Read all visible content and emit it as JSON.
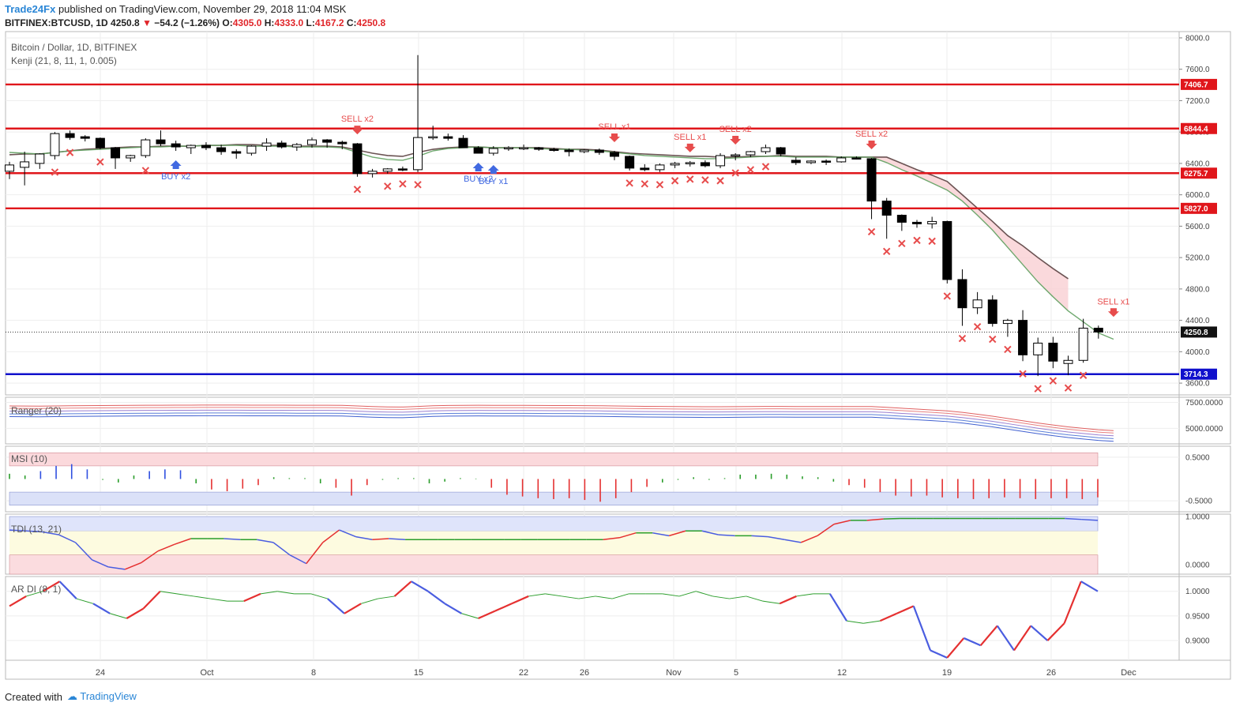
{
  "header": {
    "author": "Trade24Fx",
    "published": "published on TradingView.com, November 29, 2018 11:04 MSK",
    "symbol": "BITFINEX:BTCUSD, 1D",
    "last": "4250.8",
    "change": "−54.2 (−1.26%)",
    "o_label": "O:",
    "o": "4305.0",
    "h_label": "H:",
    "h": "4333.0",
    "l_label": "L:",
    "l": "4167.2",
    "c_label": "C:",
    "c": "4250.8"
  },
  "footer": {
    "created": "Created with",
    "brand": "TradingView"
  },
  "colors": {
    "up": "#ffffff",
    "down": "#000000",
    "resistance": "#e0161b",
    "support": "#1010cc",
    "sell": "#e74c4c",
    "buy": "#4169e1",
    "cloud": "#f9cfd3"
  },
  "chart_data": [
    {
      "type": "candlestick",
      "title": "Bitcoin / Dollar, 1D, BITFINEX",
      "indicator": "Kenji (21, 8, 11, 1, 0.005)",
      "x_ticks": [
        "24",
        "Oct",
        "8",
        "15",
        "22",
        "26",
        "Nov",
        "5",
        "12",
        "19",
        "26",
        "Dec"
      ],
      "y_ticks": [
        "8000.0",
        "7600.0",
        "7200.0",
        "6800.0",
        "6400.0",
        "6000.0",
        "5600.0",
        "5200.0",
        "4800.0",
        "4400.0",
        "4000.0",
        "3600.0"
      ],
      "ylim": [
        3450,
        8080
      ],
      "ohlc": [
        [
          6300,
          6420,
          6200,
          6380
        ],
        [
          6350,
          6550,
          6120,
          6420
        ],
        [
          6400,
          6530,
          6330,
          6520
        ],
        [
          6500,
          6800,
          6450,
          6780
        ],
        [
          6780,
          6820,
          6700,
          6730
        ],
        [
          6740,
          6760,
          6680,
          6720
        ],
        [
          6720,
          6730,
          6580,
          6600
        ],
        [
          6600,
          6610,
          6330,
          6470
        ],
        [
          6470,
          6510,
          6420,
          6500
        ],
        [
          6500,
          6720,
          6470,
          6700
        ],
        [
          6700,
          6820,
          6620,
          6650
        ],
        [
          6650,
          6690,
          6560,
          6610
        ],
        [
          6600,
          6640,
          6520,
          6630
        ],
        [
          6630,
          6670,
          6570,
          6600
        ],
        [
          6600,
          6640,
          6510,
          6550
        ],
        [
          6550,
          6580,
          6460,
          6530
        ],
        [
          6530,
          6630,
          6500,
          6620
        ],
        [
          6620,
          6720,
          6560,
          6660
        ],
        [
          6660,
          6690,
          6590,
          6610
        ],
        [
          6610,
          6660,
          6560,
          6640
        ],
        [
          6640,
          6730,
          6600,
          6700
        ],
        [
          6700,
          6710,
          6600,
          6670
        ],
        [
          6670,
          6690,
          6580,
          6650
        ],
        [
          6650,
          6660,
          6230,
          6270
        ],
        [
          6270,
          6330,
          6220,
          6300
        ],
        [
          6300,
          6340,
          6270,
          6330
        ],
        [
          6330,
          6360,
          6300,
          6320
        ],
        [
          6320,
          7780,
          6290,
          6730
        ],
        [
          6730,
          6880,
          6700,
          6740
        ],
        [
          6740,
          6780,
          6690,
          6720
        ],
        [
          6720,
          6760,
          6600,
          6600
        ],
        [
          6600,
          6620,
          6530,
          6530
        ],
        [
          6530,
          6620,
          6500,
          6590
        ],
        [
          6590,
          6620,
          6560,
          6600
        ],
        [
          6600,
          6640,
          6570,
          6600
        ],
        [
          6600,
          6610,
          6560,
          6580
        ],
        [
          6580,
          6600,
          6550,
          6570
        ],
        [
          6570,
          6590,
          6490,
          6550
        ],
        [
          6550,
          6580,
          6530,
          6570
        ],
        [
          6570,
          6590,
          6510,
          6540
        ],
        [
          6540,
          6560,
          6440,
          6490
        ],
        [
          6490,
          6500,
          6310,
          6340
        ],
        [
          6340,
          6390,
          6300,
          6320
        ],
        [
          6320,
          6400,
          6290,
          6380
        ],
        [
          6380,
          6420,
          6340,
          6400
        ],
        [
          6400,
          6430,
          6360,
          6410
        ],
        [
          6410,
          6440,
          6350,
          6370
        ],
        [
          6370,
          6530,
          6340,
          6500
        ],
        [
          6500,
          6530,
          6440,
          6510
        ],
        [
          6510,
          6560,
          6480,
          6550
        ],
        [
          6550,
          6640,
          6520,
          6600
        ],
        [
          6600,
          6610,
          6490,
          6520
        ],
        [
          6440,
          6480,
          6380,
          6410
        ],
        [
          6410,
          6440,
          6390,
          6430
        ],
        [
          6430,
          6450,
          6380,
          6420
        ],
        [
          6420,
          6490,
          6410,
          6470
        ],
        [
          6470,
          6490,
          6450,
          6460
        ],
        [
          6460,
          6470,
          5690,
          5920
        ],
        [
          5920,
          5960,
          5440,
          5740
        ],
        [
          5740,
          5750,
          5540,
          5650
        ],
        [
          5650,
          5680,
          5580,
          5630
        ],
        [
          5630,
          5720,
          5570,
          5660
        ],
        [
          5660,
          5670,
          4870,
          4920
        ],
        [
          4920,
          5050,
          4330,
          4560
        ],
        [
          4560,
          4760,
          4480,
          4660
        ],
        [
          4660,
          4720,
          4320,
          4360
        ],
        [
          4360,
          4420,
          4190,
          4400
        ],
        [
          4400,
          4530,
          3880,
          3960
        ],
        [
          3960,
          4180,
          3690,
          4110
        ],
        [
          4110,
          4190,
          3790,
          3880
        ],
        [
          3850,
          3950,
          3700,
          3890
        ],
        [
          3890,
          4420,
          3860,
          4300
        ],
        [
          4300,
          4333,
          4167,
          4251
        ]
      ],
      "kenji_line": [
        6540,
        6530,
        6520,
        6540,
        6560,
        6570,
        6580,
        6590,
        6600,
        6610,
        6610,
        6620,
        6620,
        6630,
        6630,
        6630,
        6620,
        6620,
        6620,
        6610,
        6610,
        6610,
        6600,
        6540,
        6480,
        6450,
        6440,
        6490,
        6560,
        6590,
        6600,
        6610,
        6600,
        6600,
        6600,
        6590,
        6580,
        6580,
        6570,
        6560,
        6540,
        6520,
        6500,
        6490,
        6480,
        6470,
        6460,
        6460,
        6470,
        6480,
        6490,
        6490,
        6480,
        6480,
        6480,
        6480,
        6480,
        6480,
        6410,
        6320,
        6240,
        6150,
        6060,
        5920,
        5740,
        5550,
        5330,
        5110,
        4890,
        4700,
        4520,
        4380,
        4240,
        4160
      ],
      "cloud_upper": [
        6510,
        6520,
        6520,
        6540,
        6560,
        6580,
        6590,
        6600,
        6610,
        6610,
        6620,
        6620,
        6620,
        6630,
        6630,
        6640,
        6640,
        6630,
        6630,
        6620,
        6620,
        6620,
        6610,
        6570,
        6530,
        6500,
        6490,
        6540,
        6580,
        6600,
        6610,
        6610,
        6600,
        6600,
        6600,
        6600,
        6590,
        6580,
        6580,
        6570,
        6550,
        6530,
        6520,
        6510,
        6500,
        6490,
        6490,
        6480,
        6480,
        6490,
        6490,
        6500,
        6490,
        6490,
        6490,
        6480,
        6480,
        6480,
        6480,
        6400,
        6320,
        6250,
        6170,
        6000,
        5830,
        5660,
        5480,
        5350,
        5200,
        5060,
        4930
      ],
      "levels": [
        {
          "value": 7406.7,
          "label": "7406.7",
          "kind": "resistance"
        },
        {
          "value": 6844.4,
          "label": "6844.4",
          "kind": "resistance"
        },
        {
          "value": 6275.7,
          "label": "6275.7",
          "kind": "resistance"
        },
        {
          "value": 5827.0,
          "label": "5827.0",
          "kind": "resistance"
        },
        {
          "value": 3714.3,
          "label": "3714.3",
          "kind": "support"
        }
      ],
      "last_price": {
        "value": 4250.8,
        "label": "4250.8"
      },
      "x_marks_below": [
        3,
        4,
        6,
        9,
        23,
        25,
        26,
        27,
        41,
        42,
        43,
        44,
        45,
        46,
        47,
        48,
        49,
        50,
        57,
        58,
        59,
        60,
        61,
        62,
        63,
        64,
        65,
        66,
        67,
        68,
        69,
        70,
        71,
        73
      ],
      "signals": [
        {
          "bar": 11,
          "label": "BUY x2",
          "kind": "buy"
        },
        {
          "bar": 23,
          "label": "SELL x2",
          "kind": "sell"
        },
        {
          "bar": 31,
          "label": "BUY x2",
          "kind": "buy"
        },
        {
          "bar": 32,
          "label": "BUY x1",
          "kind": "buy"
        },
        {
          "bar": 40,
          "label": "SELL x1",
          "kind": "sell"
        },
        {
          "bar": 45,
          "label": "SELL x1",
          "kind": "sell"
        },
        {
          "bar": 48,
          "label": "SELL x2",
          "kind": "sell"
        },
        {
          "bar": 57,
          "label": "SELL x2",
          "kind": "sell"
        },
        {
          "bar": 73,
          "label": "SELL x1",
          "kind": "sell"
        }
      ]
    },
    {
      "type": "line",
      "title": "Ranger (20)",
      "y_ticks": [
        "7500.0000",
        "5000.0000"
      ],
      "ylim": [
        3500,
        8000
      ]
    },
    {
      "type": "bar",
      "title": "MSI (10)",
      "y_ticks": [
        "0.5000",
        "-0.5000"
      ],
      "ylim": [
        -0.75,
        0.75
      ],
      "values": [
        0.12,
        0.08,
        0.18,
        0.3,
        0.34,
        0.22,
        -0.02,
        -0.08,
        0.08,
        0.18,
        0.22,
        0.2,
        -0.1,
        -0.24,
        -0.28,
        -0.22,
        -0.14,
        0.04,
        0.02,
        0.02,
        -0.1,
        -0.2,
        -0.38,
        -0.14,
        -0.02,
        0.02,
        0.02,
        -0.1,
        -0.06,
        0.02,
        0.01,
        -0.2,
        -0.36,
        -0.4,
        -0.44,
        -0.46,
        -0.44,
        -0.48,
        -0.52,
        -0.44,
        -0.3,
        -0.18,
        -0.08,
        -0.02,
        0.04,
        -0.02,
        0.02,
        0.1,
        0.1,
        0.12,
        0.1,
        0.06,
        0.04,
        -0.06,
        -0.14,
        -0.2,
        -0.3,
        -0.38,
        -0.4,
        -0.38,
        -0.42,
        -0.44,
        -0.46,
        -0.44,
        -0.42,
        -0.44,
        -0.46,
        -0.44,
        -0.44,
        -0.46,
        -0.42
      ]
    },
    {
      "type": "line",
      "title": "TDI (13, 21)",
      "y_ticks": [
        "1.0000",
        "0.0000"
      ],
      "ylim": [
        -0.2,
        1.05
      ],
      "values": [
        0.72,
        0.7,
        0.68,
        0.62,
        0.46,
        0.1,
        -0.05,
        -0.1,
        0.04,
        0.28,
        0.42,
        0.54,
        0.54,
        0.54,
        0.52,
        0.52,
        0.46,
        0.2,
        0.02,
        0.46,
        0.72,
        0.58,
        0.52,
        0.54,
        0.52,
        0.52,
        0.52,
        0.52,
        0.52,
        0.52,
        0.52,
        0.52,
        0.52,
        0.52,
        0.52,
        0.52,
        0.52,
        0.56,
        0.66,
        0.66,
        0.6,
        0.7,
        0.7,
        0.62,
        0.6,
        0.6,
        0.58,
        0.52,
        0.46,
        0.6,
        0.84,
        0.92,
        0.92,
        0.95,
        0.96,
        0.96,
        0.96,
        0.96,
        0.96,
        0.96,
        0.96,
        0.96,
        0.96,
        0.96,
        0.96,
        0.94,
        0.92
      ]
    },
    {
      "type": "line",
      "title": "AR DI (8, 1)",
      "y_ticks": [
        "1.0000",
        "0.9500",
        "0.9000"
      ],
      "ylim": [
        0.86,
        1.03
      ],
      "values": [
        0.97,
        0.99,
        1.0,
        1.02,
        0.985,
        0.975,
        0.955,
        0.945,
        0.965,
        1.0,
        0.995,
        0.99,
        0.985,
        0.98,
        0.98,
        0.995,
        1.0,
        0.995,
        0.995,
        0.985,
        0.955,
        0.975,
        0.985,
        0.99,
        1.02,
        1.0,
        0.975,
        0.955,
        0.945,
        0.96,
        0.975,
        0.99,
        0.995,
        0.99,
        0.985,
        0.99,
        0.985,
        0.995,
        0.995,
        0.995,
        0.99,
        1.0,
        0.99,
        0.985,
        0.99,
        0.98,
        0.975,
        0.99,
        0.995,
        0.995,
        0.94,
        0.935,
        0.94,
        0.955,
        0.97,
        0.88,
        0.865,
        0.905,
        0.89,
        0.93,
        0.88,
        0.93,
        0.9,
        0.935,
        1.02,
        1.0
      ]
    }
  ]
}
